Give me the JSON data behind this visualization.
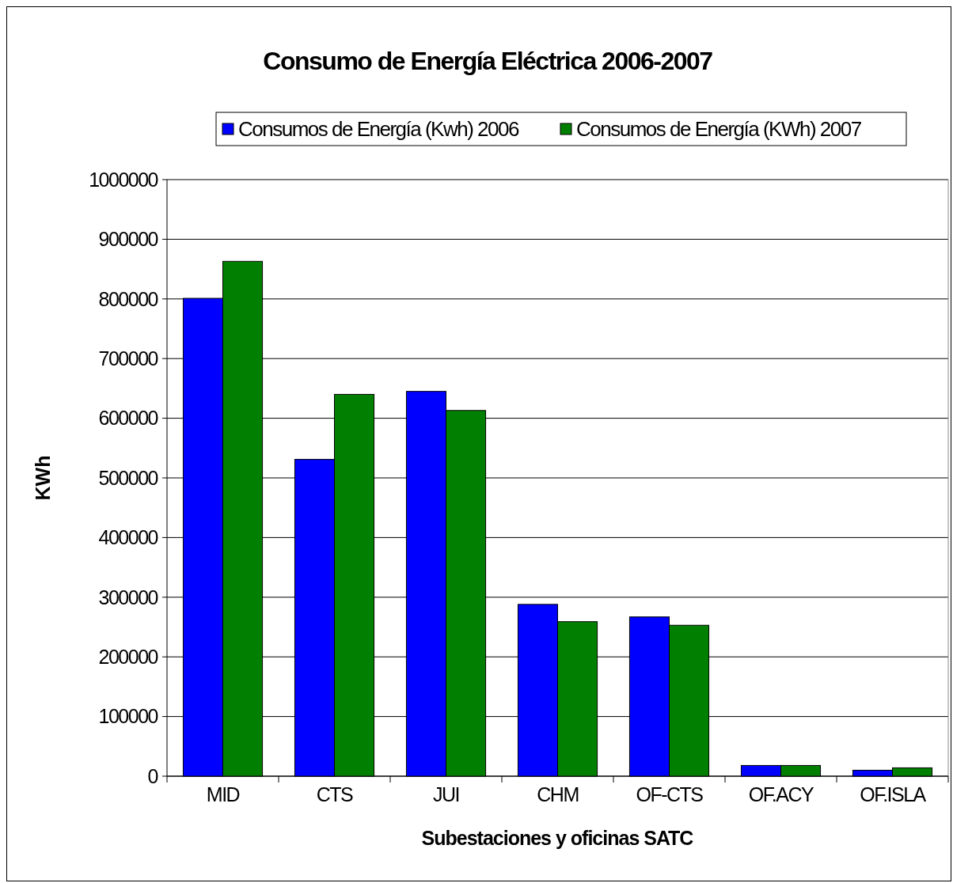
{
  "chart_data": {
    "type": "bar",
    "title": "Consumo de Energía Eléctrica 2006-2007",
    "xlabel": "Subestaciones y oficinas SATC",
    "ylabel": "KWh",
    "categories": [
      "MID",
      "CTS",
      "JUI",
      "CHM",
      "OF-CTS",
      "OF.ACY",
      "OF.ISLA"
    ],
    "series": [
      {
        "name": "Consumos de Energía (Kwh) 2006",
        "color": "#0000ff",
        "values": [
          801000,
          531000,
          645000,
          288000,
          267000,
          18000,
          10000
        ]
      },
      {
        "name": "Consumos de Energía (KWh) 2007",
        "color": "#007f00",
        "values": [
          863000,
          640000,
          613000,
          259000,
          253000,
          18000,
          14000
        ]
      }
    ],
    "ylim": [
      0,
      1000000
    ],
    "yticks": [
      0,
      100000,
      200000,
      300000,
      400000,
      500000,
      600000,
      700000,
      800000,
      900000,
      1000000
    ],
    "grid": "y",
    "legend": "top"
  }
}
